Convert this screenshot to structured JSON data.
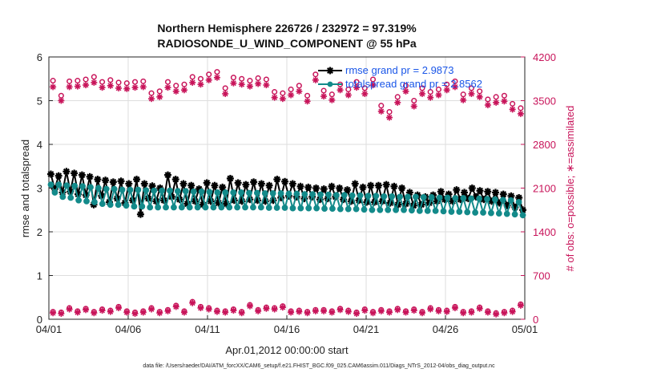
{
  "chart_data": {
    "type": "line",
    "title": "Northern Hemisphere 226726 / 232972 = 97.319%",
    "subtitle": "RADIOSONDE_U_WIND_COMPONENT @ 55 hPa",
    "xlabel": "Apr.01,2012 00:00:00 start",
    "ylabel_left": "rmse and totalspread",
    "ylabel_right": "# of obs: o=possible; ∗=assimilated",
    "footer": "data file: /Users/raeder/DAI/ATM_forcXX/CAM6_setup/f.e21.FHIST_BGC.f09_025.CAM6assim.011/Diags_NTrS_2012-04/obs_diag_output.nc",
    "x_range": [
      0,
      30
    ],
    "y_left_range": [
      0,
      6
    ],
    "y_right_range": [
      0,
      4200
    ],
    "x_ticks": [
      {
        "value": 0,
        "label": "04/01"
      },
      {
        "value": 5,
        "label": "04/06"
      },
      {
        "value": 10,
        "label": "04/11"
      },
      {
        "value": 15,
        "label": "04/16"
      },
      {
        "value": 20,
        "label": "04/21"
      },
      {
        "value": 25,
        "label": "04/26"
      },
      {
        "value": 30,
        "label": "05/01"
      }
    ],
    "y_left_ticks": [
      0,
      1,
      2,
      3,
      4,
      5,
      6
    ],
    "y_right_ticks": [
      0,
      700,
      1400,
      2100,
      2800,
      3500,
      4200
    ],
    "legend": [
      {
        "label": "rmse grand pr = 2.9873",
        "color": "#000000"
      },
      {
        "label": "totalspread grand pr = 2.8562",
        "color": "#138a8a"
      }
    ],
    "series": [
      {
        "name": "rmse",
        "color": "#000000",
        "axis": "left",
        "values": [
          3.32,
          2.98,
          3.28,
          2.9,
          3.38,
          2.92,
          3.34,
          2.86,
          3.3,
          2.84,
          3.26,
          2.62,
          3.2,
          2.82,
          3.18,
          2.68,
          3.14,
          2.76,
          3.16,
          2.66,
          3.1,
          2.72,
          3.2,
          2.4,
          3.1,
          2.76,
          3.05,
          2.7,
          3.0,
          2.72,
          3.3,
          2.8,
          3.2,
          2.74,
          3.1,
          2.64,
          3.06,
          2.7,
          2.98,
          2.62,
          3.12,
          2.7,
          3.06,
          2.66,
          3.02,
          2.64,
          3.22,
          2.72,
          3.12,
          2.7,
          3.08,
          2.74,
          3.14,
          2.72,
          3.1,
          2.7,
          3.06,
          2.72,
          3.2,
          2.78,
          3.15,
          2.82,
          3.1,
          2.8,
          3.04,
          2.76,
          3.02,
          2.8,
          3.0,
          2.74,
          2.98,
          2.76,
          3.04,
          2.8,
          3.0,
          2.74,
          2.96,
          2.7,
          3.1,
          2.72,
          3.02,
          2.68,
          3.06,
          2.68,
          3.06,
          2.7,
          3.08,
          2.66,
          3.04,
          2.62,
          3.0,
          2.64,
          2.9,
          2.6,
          2.84,
          2.62,
          2.8,
          2.66,
          2.84,
          2.7,
          2.92,
          2.74,
          2.86,
          2.7,
          2.96,
          2.74,
          2.9,
          2.76,
          3.0,
          2.8,
          2.94,
          2.74,
          2.92,
          2.7,
          2.9,
          2.66,
          2.86,
          2.6,
          2.82,
          2.56,
          2.78,
          2.5
        ]
      },
      {
        "name": "totalspread",
        "color": "#138a8a",
        "axis": "left",
        "values": [
          3.08,
          2.9,
          3.08,
          2.8,
          3.06,
          2.78,
          3.05,
          2.72,
          3.04,
          2.7,
          3.02,
          2.68,
          3.0,
          2.64,
          2.98,
          2.62,
          2.98,
          2.62,
          2.96,
          2.6,
          2.96,
          2.58,
          2.96,
          2.58,
          2.95,
          2.56,
          2.94,
          2.56,
          2.94,
          2.56,
          2.94,
          2.56,
          2.93,
          2.56,
          2.93,
          2.56,
          2.92,
          2.56,
          2.92,
          2.56,
          2.91,
          2.56,
          2.9,
          2.56,
          2.9,
          2.56,
          2.9,
          2.56,
          2.9,
          2.56,
          2.89,
          2.56,
          2.89,
          2.56,
          2.88,
          2.55,
          2.88,
          2.55,
          2.88,
          2.55,
          2.87,
          2.54,
          2.87,
          2.54,
          2.86,
          2.54,
          2.86,
          2.54,
          2.85,
          2.53,
          2.85,
          2.53,
          2.84,
          2.52,
          2.84,
          2.52,
          2.83,
          2.52,
          2.83,
          2.51,
          2.82,
          2.5,
          2.82,
          2.5,
          2.81,
          2.5,
          2.81,
          2.5,
          2.8,
          2.5,
          2.8,
          2.49,
          2.8,
          2.48,
          2.79,
          2.48,
          2.79,
          2.48,
          2.78,
          2.47,
          2.78,
          2.46,
          2.77,
          2.46,
          2.77,
          2.45,
          2.76,
          2.44,
          2.76,
          2.44,
          2.75,
          2.43,
          2.74,
          2.42,
          2.73,
          2.41,
          2.72,
          2.4,
          2.68,
          2.38
        ]
      },
      {
        "name": "obs possible",
        "color": "#c8145a",
        "axis": "right",
        "marker": "circle",
        "values": [
          3820,
          3580,
          3810,
          3820,
          3840,
          3880,
          3800,
          3830,
          3790,
          3780,
          3800,
          3810,
          3620,
          3650,
          3800,
          3740,
          3760,
          3880,
          3850,
          3920,
          3960,
          3700,
          3870,
          3850,
          3820,
          3860,
          3840,
          3640,
          3620,
          3680,
          3740,
          3580,
          3920,
          3660,
          3600,
          3760,
          3680,
          3800,
          3700,
          3840,
          3420,
          3320,
          3560,
          3740,
          3500,
          3700,
          3640,
          3680,
          3760,
          3810,
          3600,
          3700,
          3650,
          3520,
          3560,
          3580,
          3450,
          3380
        ]
      },
      {
        "name": "obs assimilated",
        "color": "#c8145a",
        "axis": "right",
        "marker": "asterisk",
        "values": [
          3720,
          3500,
          3720,
          3730,
          3750,
          3790,
          3710,
          3740,
          3700,
          3690,
          3710,
          3720,
          3530,
          3560,
          3710,
          3650,
          3670,
          3790,
          3760,
          3830,
          3870,
          3610,
          3780,
          3760,
          3730,
          3770,
          3750,
          3550,
          3530,
          3590,
          3650,
          3490,
          3830,
          3570,
          3510,
          3670,
          3590,
          3710,
          3610,
          3750,
          3330,
          3230,
          3470,
          3650,
          3410,
          3610,
          3550,
          3590,
          3670,
          3720,
          3510,
          3610,
          3560,
          3430,
          3470,
          3490,
          3360,
          3290
        ]
      },
      {
        "name": "obs low possible",
        "color": "#c8145a",
        "axis": "right",
        "marker": "circle",
        "values": [
          120,
          110,
          180,
          130,
          170,
          120,
          160,
          140,
          200,
          130,
          110,
          130,
          180,
          120,
          150,
          220,
          130,
          280,
          200,
          180,
          140,
          130,
          160,
          120,
          230,
          150,
          190,
          180,
          210,
          130,
          140,
          120,
          150,
          150,
          130,
          170,
          140,
          110,
          160,
          120,
          150,
          130,
          170,
          130,
          160,
          120,
          180,
          150,
          140,
          200,
          120,
          130,
          190,
          130,
          100,
          120,
          140,
          240
        ]
      },
      {
        "name": "obs low assimilated",
        "color": "#c8145a",
        "axis": "right",
        "marker": "asterisk",
        "values": [
          100,
          90,
          160,
          110,
          150,
          100,
          140,
          120,
          180,
          110,
          90,
          110,
          160,
          100,
          130,
          200,
          110,
          260,
          180,
          160,
          120,
          110,
          140,
          100,
          210,
          130,
          170,
          160,
          190,
          110,
          120,
          100,
          130,
          130,
          110,
          150,
          120,
          90,
          140,
          100,
          130,
          110,
          150,
          110,
          140,
          100,
          160,
          130,
          120,
          180,
          100,
          110,
          170,
          110,
          80,
          100,
          120,
          220
        ]
      }
    ]
  }
}
